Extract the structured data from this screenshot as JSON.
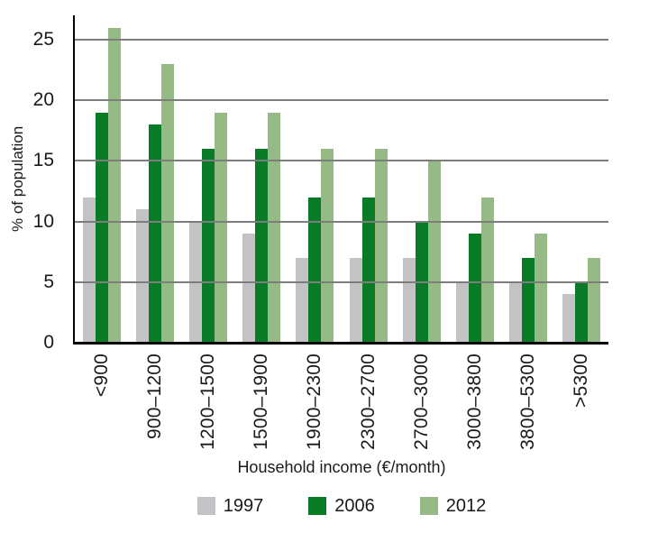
{
  "chart_data": {
    "type": "bar",
    "title": "",
    "xlabel": "Household income (€/month)",
    "ylabel": "% of population",
    "categories": [
      "<900",
      "900–1200",
      "1200–1500",
      "1500–1900",
      "1900–2300",
      "2300–2700",
      "2700–3000",
      "3000–3800",
      "3800–5300",
      ">5300"
    ],
    "series": [
      {
        "name": "1997",
        "color": "#c3c3c5",
        "values": [
          12,
          11,
          10,
          9,
          7,
          7,
          7,
          5,
          5,
          4
        ]
      },
      {
        "name": "2006",
        "color": "#097b27",
        "values": [
          19,
          18,
          16,
          16,
          12,
          12,
          10,
          9,
          7,
          5
        ]
      },
      {
        "name": "2012",
        "color": "#96ba86",
        "values": [
          26,
          23,
          19,
          19,
          16,
          16,
          15,
          12,
          9,
          7
        ]
      }
    ],
    "yticks": [
      0,
      5,
      10,
      15,
      20,
      25
    ],
    "ylim": [
      0,
      27
    ],
    "grid": "horizontal",
    "gridline_color": "#7d7d7d",
    "axis_color": "#000000",
    "legend_position": "bottom"
  }
}
